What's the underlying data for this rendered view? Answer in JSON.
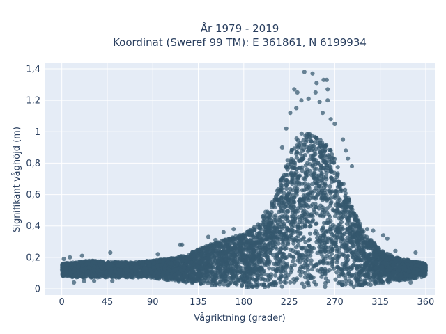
{
  "chart_data": {
    "type": "scatter",
    "title_line1": "År 1979 - 2019",
    "title_line2": "Koordinat (Sweref 99 TM): E 361861, N 6199934",
    "xlabel": "Vågriktning (grader)",
    "ylabel": "Signifikant våghöjd (m)",
    "xlim": [
      -17,
      369
    ],
    "ylim": [
      -0.04,
      1.44
    ],
    "x_ticks": [
      0,
      45,
      90,
      135,
      180,
      225,
      270,
      315,
      360
    ],
    "x_tick_labels": [
      "0",
      "45",
      "90",
      "135",
      "180",
      "225",
      "270",
      "315",
      "360"
    ],
    "y_ticks": [
      0,
      0.2,
      0.4,
      0.6,
      0.8,
      1.0,
      1.2,
      1.4
    ],
    "y_tick_labels": [
      "0",
      "0,2",
      "0,4",
      "0,6",
      "0,8",
      "1",
      "1,2",
      "1,4"
    ],
    "grid": true,
    "legend": "none",
    "plot_background": "#e5ecf6",
    "marker_color": "#34586e",
    "envelope": {
      "x": [
        0,
        15,
        30,
        45,
        60,
        75,
        90,
        105,
        120,
        135,
        150,
        165,
        180,
        195,
        210,
        225,
        235,
        245,
        255,
        265,
        275,
        285,
        300,
        315,
        330,
        345,
        360
      ],
      "ymin": [
        0.08,
        0.07,
        0.07,
        0.07,
        0.07,
        0.07,
        0.07,
        0.05,
        0.04,
        0.03,
        0.02,
        0.02,
        0.01,
        0.01,
        0.01,
        0.01,
        0.01,
        0.01,
        0.01,
        0.01,
        0.01,
        0.01,
        0.02,
        0.03,
        0.05,
        0.06,
        0.08
      ],
      "ymax": [
        0.16,
        0.17,
        0.18,
        0.17,
        0.17,
        0.17,
        0.18,
        0.19,
        0.21,
        0.25,
        0.29,
        0.32,
        0.35,
        0.42,
        0.58,
        0.85,
        1.0,
        1.0,
        0.95,
        0.9,
        0.75,
        0.55,
        0.35,
        0.25,
        0.2,
        0.18,
        0.16
      ]
    },
    "outliers": [
      {
        "x": 240,
        "y": 1.38
      },
      {
        "x": 248,
        "y": 1.37
      },
      {
        "x": 230,
        "y": 1.27
      },
      {
        "x": 233,
        "y": 1.25
      },
      {
        "x": 251,
        "y": 1.25
      },
      {
        "x": 252,
        "y": 1.31
      },
      {
        "x": 259,
        "y": 1.33
      },
      {
        "x": 262,
        "y": 1.33
      },
      {
        "x": 237,
        "y": 1.2
      },
      {
        "x": 244,
        "y": 1.21
      },
      {
        "x": 255,
        "y": 1.19
      },
      {
        "x": 263,
        "y": 1.2
      },
      {
        "x": 263,
        "y": 1.27
      },
      {
        "x": 226,
        "y": 1.12
      },
      {
        "x": 232,
        "y": 1.15
      },
      {
        "x": 258,
        "y": 1.12
      },
      {
        "x": 266,
        "y": 1.08
      },
      {
        "x": 270,
        "y": 1.05
      },
      {
        "x": 222,
        "y": 1.02
      },
      {
        "x": 278,
        "y": 0.95
      },
      {
        "x": 281,
        "y": 0.88
      },
      {
        "x": 48,
        "y": 0.23
      },
      {
        "x": 95,
        "y": 0.22
      },
      {
        "x": 117,
        "y": 0.28
      },
      {
        "x": 119,
        "y": 0.28
      },
      {
        "x": 145,
        "y": 0.33
      },
      {
        "x": 152,
        "y": 0.31
      },
      {
        "x": 160,
        "y": 0.36
      },
      {
        "x": 170,
        "y": 0.38
      },
      {
        "x": 302,
        "y": 0.38
      },
      {
        "x": 308,
        "y": 0.37
      },
      {
        "x": 318,
        "y": 0.34
      },
      {
        "x": 322,
        "y": 0.32
      },
      {
        "x": 330,
        "y": 0.24
      },
      {
        "x": 350,
        "y": 0.23
      },
      {
        "x": 2,
        "y": 0.19
      },
      {
        "x": 8,
        "y": 0.2
      },
      {
        "x": 20,
        "y": 0.21
      },
      {
        "x": 22,
        "y": 0.05
      },
      {
        "x": 32,
        "y": 0.05
      },
      {
        "x": 50,
        "y": 0.05
      },
      {
        "x": 12,
        "y": 0.04
      },
      {
        "x": 345,
        "y": 0.04
      },
      {
        "x": 300,
        "y": 0.05
      },
      {
        "x": 283,
        "y": 0.83
      },
      {
        "x": 287,
        "y": 0.78
      },
      {
        "x": 218,
        "y": 0.9
      }
    ]
  }
}
